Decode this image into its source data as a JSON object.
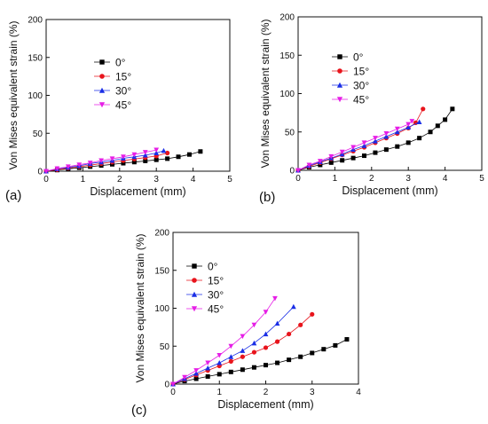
{
  "chart_data": [
    {
      "type": "line",
      "panel_label": "(a)",
      "xlabel": "Displacement (mm)",
      "ylabel": "Von Mises equivalent strain (%)",
      "xlim": [
        0,
        5
      ],
      "ylim": [
        0,
        200
      ],
      "xticks": [
        "0",
        "1",
        "2",
        "3",
        "4",
        "5"
      ],
      "yticks": [
        "0",
        "50",
        "100",
        "150",
        "200"
      ],
      "legend_position": "upper-left",
      "series": [
        {
          "name": "0°",
          "marker": "square",
          "color": "#000000",
          "x": [
            0.0,
            0.3,
            0.6,
            0.9,
            1.2,
            1.5,
            1.8,
            2.1,
            2.4,
            2.7,
            3.0,
            3.3,
            3.6,
            3.9,
            4.2
          ],
          "y": [
            0,
            1.5,
            3,
            4.5,
            6,
            7.5,
            9,
            10.5,
            12,
            13.5,
            15,
            16.5,
            19,
            22,
            26
          ]
        },
        {
          "name": "15°",
          "marker": "circle",
          "color": "#e8141c",
          "x": [
            0.0,
            0.3,
            0.6,
            0.9,
            1.2,
            1.5,
            1.8,
            2.1,
            2.4,
            2.7,
            3.0,
            3.3
          ],
          "y": [
            0,
            2,
            4,
            6,
            8,
            10,
            12,
            14,
            16,
            18,
            20,
            24
          ]
        },
        {
          "name": "30°",
          "marker": "triangle-up",
          "color": "#1a2ee6",
          "x": [
            0.0,
            0.3,
            0.6,
            0.9,
            1.2,
            1.5,
            1.8,
            2.1,
            2.4,
            2.7,
            3.0,
            3.2
          ],
          "y": [
            0,
            3,
            5,
            7,
            10,
            12,
            14,
            17,
            19,
            21,
            24,
            27
          ]
        },
        {
          "name": "45°",
          "marker": "triangle-down",
          "color": "#e61ee6",
          "x": [
            0.0,
            0.3,
            0.6,
            0.9,
            1.2,
            1.5,
            1.8,
            2.1,
            2.4,
            2.7,
            3.0
          ],
          "y": [
            0,
            3.5,
            6,
            8.5,
            11,
            14,
            16.5,
            19,
            22,
            25,
            28
          ]
        }
      ]
    },
    {
      "type": "line",
      "panel_label": "(b)",
      "xlabel": "Displacement (mm)",
      "ylabel": "Von Mises equivalent strain (%)",
      "xlim": [
        0,
        5
      ],
      "ylim": [
        0,
        200
      ],
      "xticks": [
        "0",
        "1",
        "2",
        "3",
        "4",
        "5"
      ],
      "yticks": [
        "0",
        "50",
        "100",
        "150",
        "200"
      ],
      "legend_position": "upper-left",
      "series": [
        {
          "name": "0°",
          "marker": "square",
          "color": "#000000",
          "x": [
            0.0,
            0.3,
            0.6,
            0.9,
            1.2,
            1.5,
            1.8,
            2.1,
            2.4,
            2.7,
            3.0,
            3.3,
            3.6,
            3.8,
            4.0,
            4.2
          ],
          "y": [
            0,
            4,
            7,
            10,
            13,
            16,
            19,
            23,
            27,
            31,
            36,
            42,
            50,
            58,
            66,
            80
          ]
        },
        {
          "name": "15°",
          "marker": "circle",
          "color": "#e8141c",
          "x": [
            0.0,
            0.3,
            0.6,
            0.9,
            1.2,
            1.5,
            1.8,
            2.1,
            2.4,
            2.7,
            3.0,
            3.2,
            3.4
          ],
          "y": [
            0,
            5,
            10,
            15,
            20,
            25,
            30,
            36,
            42,
            48,
            55,
            62,
            80
          ]
        },
        {
          "name": "30°",
          "marker": "triangle-up",
          "color": "#1a2ee6",
          "x": [
            0.0,
            0.3,
            0.6,
            0.9,
            1.2,
            1.5,
            1.8,
            2.1,
            2.4,
            2.7,
            3.0,
            3.3
          ],
          "y": [
            0,
            6,
            11,
            16,
            21,
            27,
            32,
            38,
            44,
            50,
            56,
            63
          ]
        },
        {
          "name": "45°",
          "marker": "triangle-down",
          "color": "#e61ee6",
          "x": [
            0.0,
            0.3,
            0.6,
            0.9,
            1.2,
            1.5,
            1.8,
            2.1,
            2.4,
            2.7,
            3.0,
            3.1
          ],
          "y": [
            0,
            7,
            12,
            18,
            24,
            30,
            36,
            42,
            48,
            54,
            60,
            64
          ]
        }
      ]
    },
    {
      "type": "line",
      "panel_label": "(c)",
      "xlabel": "Displacement (mm)",
      "ylabel": "Von Mises equivalent strain (%)",
      "xlim": [
        0,
        4
      ],
      "ylim": [
        0,
        200
      ],
      "xticks": [
        "0",
        "1",
        "2",
        "3",
        "4"
      ],
      "yticks": [
        "0",
        "50",
        "100",
        "150",
        "200"
      ],
      "legend_position": "upper-left",
      "series": [
        {
          "name": "0°",
          "marker": "square",
          "color": "#000000",
          "x": [
            0.0,
            0.25,
            0.5,
            0.75,
            1.0,
            1.25,
            1.5,
            1.75,
            2.0,
            2.25,
            2.5,
            2.75,
            3.0,
            3.25,
            3.5,
            3.75
          ],
          "y": [
            0,
            4,
            7,
            10,
            13,
            16,
            19,
            22,
            25,
            28,
            32,
            36,
            41,
            46,
            51,
            59
          ]
        },
        {
          "name": "15°",
          "marker": "circle",
          "color": "#e8141c",
          "x": [
            0.0,
            0.25,
            0.5,
            0.75,
            1.0,
            1.25,
            1.5,
            1.75,
            2.0,
            2.25,
            2.5,
            2.75,
            3.0
          ],
          "y": [
            0,
            6,
            12,
            18,
            24,
            30,
            36,
            42,
            48,
            56,
            66,
            78,
            92
          ]
        },
        {
          "name": "30°",
          "marker": "triangle-up",
          "color": "#1a2ee6",
          "x": [
            0.0,
            0.25,
            0.5,
            0.75,
            1.0,
            1.25,
            1.5,
            1.75,
            2.0,
            2.25,
            2.6
          ],
          "y": [
            0,
            7,
            14,
            21,
            28,
            36,
            44,
            54,
            66,
            80,
            102
          ]
        },
        {
          "name": "45°",
          "marker": "triangle-down",
          "color": "#e61ee6",
          "x": [
            0.0,
            0.25,
            0.5,
            0.75,
            1.0,
            1.25,
            1.5,
            1.75,
            2.0,
            2.2
          ],
          "y": [
            0,
            9,
            18,
            28,
            38,
            50,
            63,
            78,
            95,
            113
          ]
        }
      ]
    }
  ]
}
